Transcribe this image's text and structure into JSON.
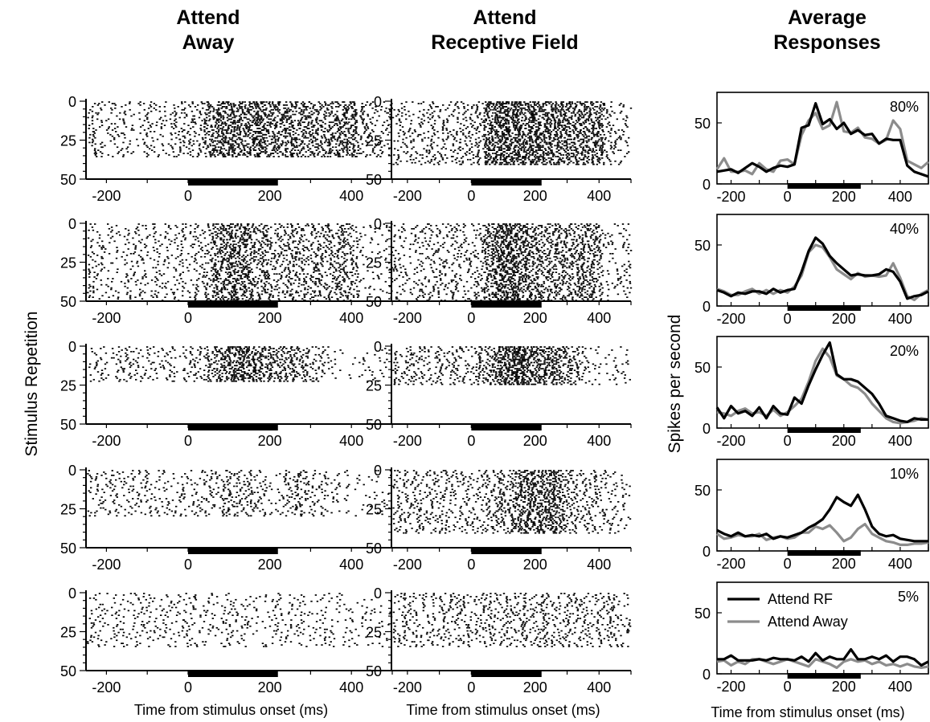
{
  "titles": {
    "col1": [
      "Attend",
      "Away"
    ],
    "col2": [
      "Attend",
      "Receptive Field"
    ],
    "col3": [
      "Average",
      "Responses"
    ]
  },
  "ylabels": {
    "raster": "Stimulus Repetition",
    "psth": "Spikes per second"
  },
  "xlabel": "Time from stimulus onset (ms)",
  "legend": [
    "Attend RF",
    "Attend Away"
  ],
  "colors": {
    "attend_rf": "#000000",
    "attend_away": "#8c8c8c"
  },
  "chart_data": [
    {
      "type": "scatter",
      "panel": "raster",
      "condition": "Attend Away",
      "xlim": [
        -250,
        500
      ],
      "ylim": [
        0,
        50
      ],
      "xticks": [
        -200,
        0,
        200,
        400
      ],
      "yticks": [
        0,
        25,
        50
      ],
      "stimulus_bar": [
        0,
        220
      ],
      "rows_per_coherence": {
        "80%": 36,
        "40%": 50,
        "20%": 23,
        "10%": 30,
        "5%": 35
      }
    },
    {
      "type": "scatter",
      "panel": "raster",
      "condition": "Attend Receptive Field",
      "xlim": [
        -250,
        500
      ],
      "ylim": [
        0,
        50
      ],
      "xticks": [
        -200,
        0,
        200,
        400
      ],
      "yticks": [
        0,
        25,
        50
      ],
      "stimulus_bar": [
        0,
        220
      ],
      "rows_per_coherence": {
        "80%": 41,
        "40%": 50,
        "20%": 25,
        "10%": 41,
        "5%": 35
      }
    },
    {
      "type": "line",
      "panel": "psth",
      "coherences": [
        "80%",
        "40%",
        "20%",
        "10%",
        "5%"
      ],
      "x": [
        -250,
        -225,
        -200,
        -175,
        -150,
        -125,
        -100,
        -75,
        -50,
        -25,
        0,
        25,
        50,
        75,
        100,
        125,
        150,
        175,
        200,
        225,
        250,
        275,
        300,
        325,
        350,
        375,
        400,
        425,
        450,
        475,
        500
      ],
      "xlim": [
        -250,
        500
      ],
      "ylim": [
        0,
        75
      ],
      "xticks": [
        -200,
        0,
        200,
        400
      ],
      "yticks": [
        0,
        50
      ],
      "stimulus_bar": [
        0,
        260
      ],
      "series": {
        "80%": {
          "attend_rf": [
            10,
            11,
            12,
            9,
            13,
            17,
            14,
            10,
            13,
            15,
            14,
            16,
            46,
            48,
            66,
            49,
            53,
            45,
            50,
            41,
            44,
            40,
            41,
            33,
            37,
            36,
            36,
            15,
            10,
            8,
            6
          ],
          "attend_away": [
            12,
            21,
            10,
            10,
            11,
            8,
            17,
            12,
            10,
            19,
            20,
            16,
            40,
            52,
            58,
            45,
            48,
            67,
            43,
            42,
            46,
            38,
            37,
            33,
            36,
            52,
            45,
            19,
            16,
            13,
            18
          ]
        },
        "40%": {
          "attend_rf": [
            13,
            11,
            8,
            11,
            10,
            12,
            12,
            10,
            14,
            11,
            13,
            14,
            28,
            45,
            56,
            51,
            41,
            35,
            30,
            25,
            26,
            25,
            25,
            26,
            30,
            28,
            20,
            6,
            8,
            9,
            12
          ],
          "attend_away": [
            14,
            12,
            9,
            9,
            12,
            14,
            10,
            13,
            10,
            13,
            11,
            16,
            25,
            44,
            50,
            48,
            40,
            30,
            26,
            22,
            27,
            24,
            25,
            24,
            25,
            35,
            23,
            8,
            5,
            10,
            13
          ]
        },
        "20%": {
          "attend_rf": [
            17,
            8,
            18,
            12,
            14,
            10,
            17,
            8,
            18,
            12,
            11,
            25,
            20,
            35,
            48,
            60,
            70,
            44,
            40,
            40,
            38,
            33,
            28,
            20,
            10,
            8,
            6,
            5,
            8,
            7,
            7
          ],
          "attend_away": [
            13,
            12,
            10,
            14,
            16,
            12,
            13,
            10,
            15,
            10,
            13,
            18,
            24,
            38,
            55,
            65,
            58,
            43,
            40,
            35,
            33,
            28,
            20,
            14,
            8,
            5,
            4,
            5,
            6,
            8,
            7
          ]
        },
        "10%": {
          "attend_rf": [
            17,
            14,
            12,
            15,
            12,
            13,
            12,
            14,
            10,
            12,
            11,
            13,
            15,
            19,
            22,
            26,
            34,
            44,
            40,
            37,
            46,
            34,
            20,
            14,
            12,
            13,
            10,
            9,
            8,
            8,
            8
          ],
          "attend_away": [
            14,
            10,
            11,
            13,
            12,
            12,
            14,
            9,
            11,
            12,
            10,
            11,
            15,
            15,
            20,
            18,
            21,
            15,
            8,
            11,
            18,
            22,
            14,
            11,
            8,
            7,
            5,
            5,
            6,
            6,
            7
          ]
        },
        "5%": {
          "attend_rf": [
            12,
            12,
            15,
            11,
            11,
            11,
            12,
            11,
            13,
            12,
            12,
            11,
            14,
            10,
            17,
            11,
            14,
            12,
            12,
            20,
            12,
            12,
            14,
            12,
            15,
            10,
            14,
            14,
            12,
            7,
            10
          ],
          "attend_away": [
            10,
            11,
            7,
            10,
            8,
            12,
            12,
            10,
            8,
            10,
            12,
            10,
            8,
            6,
            12,
            10,
            8,
            5,
            10,
            12,
            10,
            11,
            8,
            10,
            7,
            8,
            6,
            8,
            6,
            5,
            6
          ]
        }
      }
    }
  ]
}
